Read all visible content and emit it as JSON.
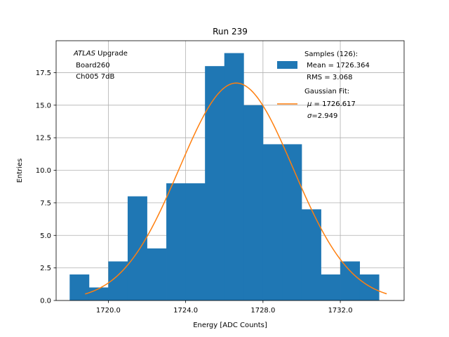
{
  "chart_data": {
    "type": "bar",
    "title": "Run 239",
    "xlabel": "Energy [ADC Counts]",
    "ylabel": "Entries",
    "xlim": [
      1717.3,
      1735.3
    ],
    "ylim": [
      0,
      19.95
    ],
    "grid": true,
    "x_ticks": [
      1720,
      1724,
      1728,
      1732
    ],
    "x_tick_labels": [
      "1720.0",
      "1724.0",
      "1728.0",
      "1732.0"
    ],
    "y_ticks": [
      0,
      2.5,
      5,
      7.5,
      10,
      12.5,
      15,
      17.5
    ],
    "y_tick_labels": [
      "0.0",
      "2.5",
      "5.0",
      "7.5",
      "10.0",
      "12.5",
      "15.0",
      "17.5"
    ],
    "bin_width": 1,
    "bin_edges": [
      1718,
      1719,
      1720,
      1721,
      1722,
      1723,
      1724,
      1725,
      1726,
      1727,
      1728,
      1729,
      1730,
      1731,
      1732,
      1733,
      1734
    ],
    "values": [
      2,
      1,
      3,
      8,
      4,
      9,
      9,
      18,
      19,
      15,
      12,
      12,
      7,
      2,
      3,
      2
    ],
    "histogram_color": "#1f77b4",
    "fit": {
      "name": "Gaussian Fit",
      "type": "gaussian",
      "mu": 1726.617,
      "sigma": 2.949,
      "amplitude": 16.7,
      "x_range": [
        1718.8,
        1734.4
      ],
      "color": "#ff7f0e"
    },
    "annotation": {
      "italic_part": "ATLAS",
      "line1_rest": " Upgrade",
      "line2": " Board260",
      "line3": " Ch005 7dB"
    },
    "legend": {
      "position": "top-right",
      "samples": {
        "line1": "Samples (126):",
        "line2": " Mean = 1726.364",
        "line3": " RMS = 3.068"
      },
      "fit": {
        "line1": "Gaussian Fit:",
        "line2_sym": "μ",
        "line2_rest": " = 1726.617",
        "line3_sym": "σ",
        "line3_rest": "=2.949"
      }
    }
  }
}
